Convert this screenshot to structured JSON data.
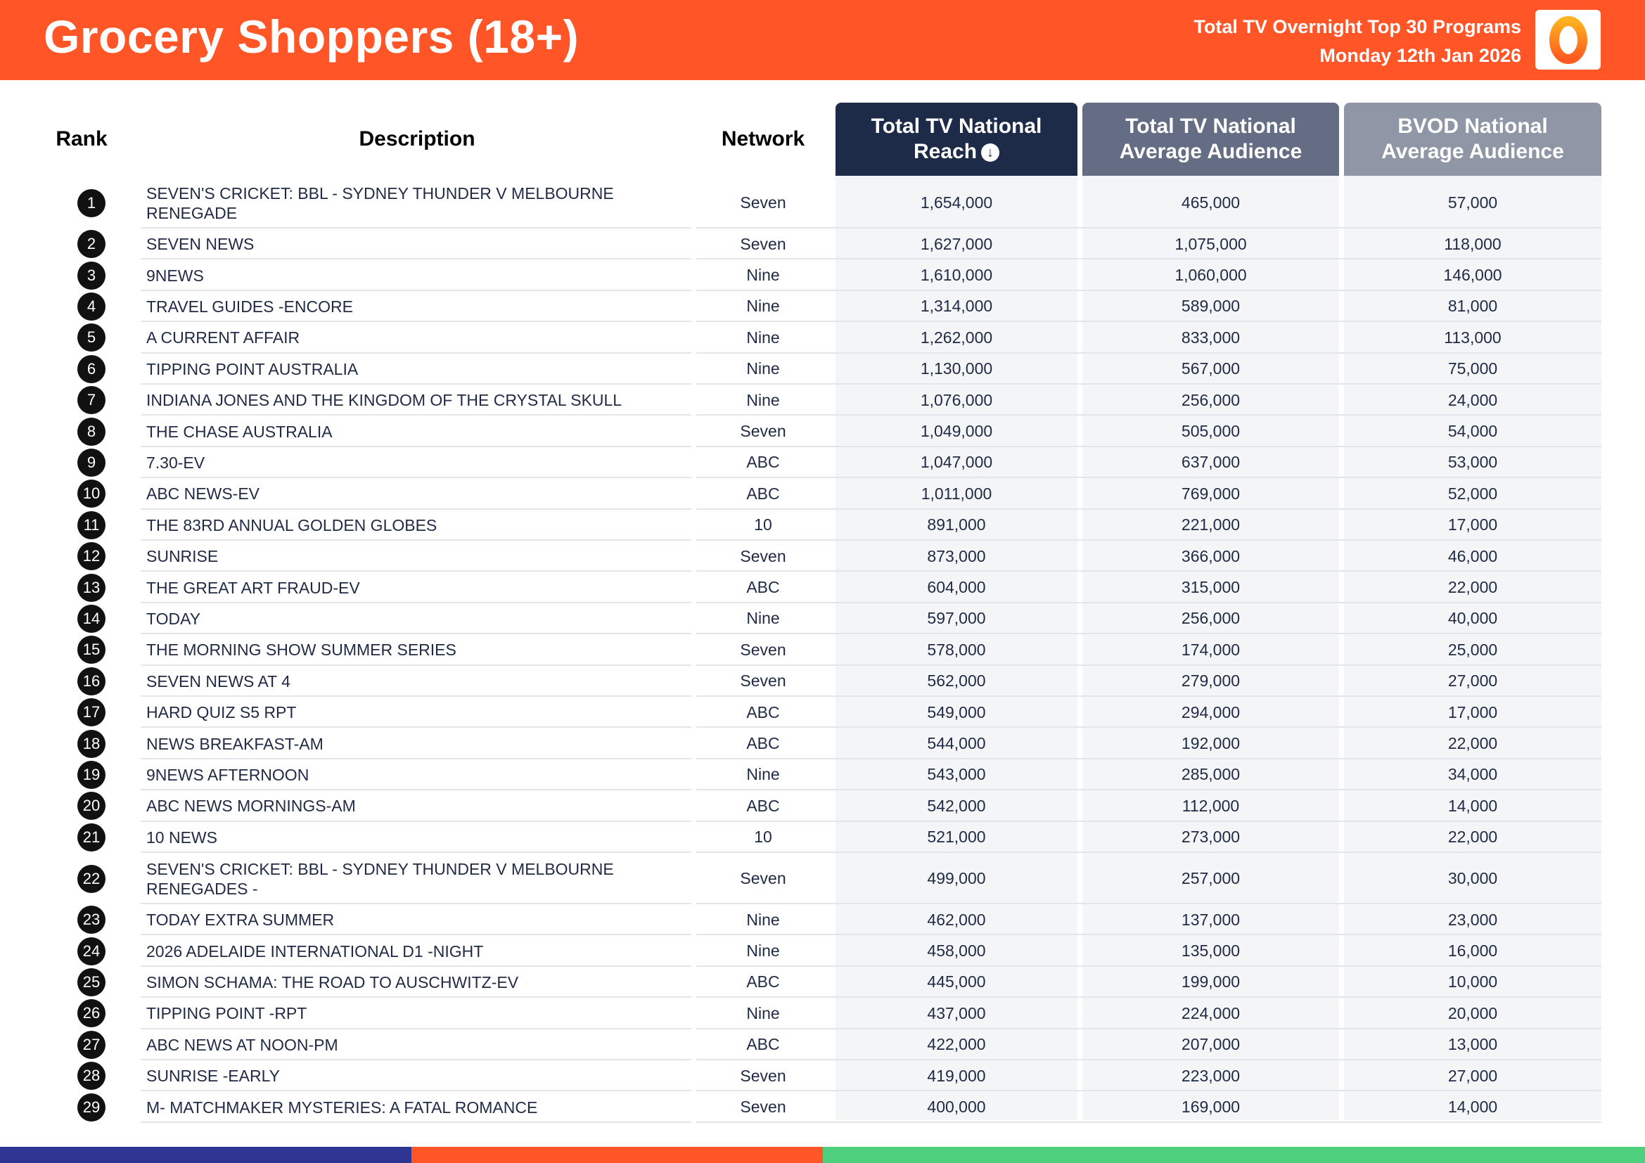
{
  "header": {
    "title": "Grocery Shoppers (18+)",
    "subtitle_line1": "Total TV Overnight Top 30 Programs",
    "subtitle_line2": "Monday 12th Jan 2026",
    "logo_glyph": "0"
  },
  "table": {
    "columns": {
      "rank": "Rank",
      "description": "Description",
      "network": "Network",
      "reach": "Total TV National Reach",
      "reach_line1": "Total TV National",
      "reach_line2": "Reach",
      "avg_line1": "Total TV National",
      "avg_line2": "Average Audience",
      "bvod_line1": "BVOD National",
      "bvod_line2": "Average Audience"
    },
    "sort_icon": "arrow-down-circle-icon",
    "colors": {
      "header_orange": "#ff5527",
      "reach_header": "#1e2b48",
      "avg_header": "#646d83",
      "bvod_header": "#8f97a7",
      "footer_navy": "#2e3592",
      "footer_orange": "#ff5527",
      "footer_green": "#4ecf7e"
    },
    "rows": [
      {
        "rank": "1",
        "description": "SEVEN'S CRICKET: BBL - SYDNEY THUNDER V MELBOURNE RENEGADE",
        "network": "Seven",
        "reach": "1,654,000",
        "avg": "465,000",
        "bvod": "57,000"
      },
      {
        "rank": "2",
        "description": "SEVEN NEWS",
        "network": "Seven",
        "reach": "1,627,000",
        "avg": "1,075,000",
        "bvod": "118,000"
      },
      {
        "rank": "3",
        "description": "9NEWS",
        "network": "Nine",
        "reach": "1,610,000",
        "avg": "1,060,000",
        "bvod": "146,000"
      },
      {
        "rank": "4",
        "description": "TRAVEL GUIDES -ENCORE",
        "network": "Nine",
        "reach": "1,314,000",
        "avg": "589,000",
        "bvod": "81,000"
      },
      {
        "rank": "5",
        "description": "A CURRENT AFFAIR",
        "network": "Nine",
        "reach": "1,262,000",
        "avg": "833,000",
        "bvod": "113,000"
      },
      {
        "rank": "6",
        "description": "TIPPING POINT AUSTRALIA",
        "network": "Nine",
        "reach": "1,130,000",
        "avg": "567,000",
        "bvod": "75,000"
      },
      {
        "rank": "7",
        "description": "INDIANA JONES AND THE KINGDOM OF THE CRYSTAL SKULL",
        "network": "Nine",
        "reach": "1,076,000",
        "avg": "256,000",
        "bvod": "24,000"
      },
      {
        "rank": "8",
        "description": "THE CHASE AUSTRALIA",
        "network": "Seven",
        "reach": "1,049,000",
        "avg": "505,000",
        "bvod": "54,000"
      },
      {
        "rank": "9",
        "description": "7.30-EV",
        "network": "ABC",
        "reach": "1,047,000",
        "avg": "637,000",
        "bvod": "53,000"
      },
      {
        "rank": "10",
        "description": "ABC NEWS-EV",
        "network": "ABC",
        "reach": "1,011,000",
        "avg": "769,000",
        "bvod": "52,000"
      },
      {
        "rank": "11",
        "description": "THE 83RD ANNUAL GOLDEN GLOBES",
        "network": "10",
        "reach": "891,000",
        "avg": "221,000",
        "bvod": "17,000"
      },
      {
        "rank": "12",
        "description": "SUNRISE",
        "network": "Seven",
        "reach": "873,000",
        "avg": "366,000",
        "bvod": "46,000"
      },
      {
        "rank": "13",
        "description": "THE GREAT ART FRAUD-EV",
        "network": "ABC",
        "reach": "604,000",
        "avg": "315,000",
        "bvod": "22,000"
      },
      {
        "rank": "14",
        "description": "TODAY",
        "network": "Nine",
        "reach": "597,000",
        "avg": "256,000",
        "bvod": "40,000"
      },
      {
        "rank": "15",
        "description": "THE MORNING SHOW SUMMER SERIES",
        "network": "Seven",
        "reach": "578,000",
        "avg": "174,000",
        "bvod": "25,000"
      },
      {
        "rank": "16",
        "description": "SEVEN NEWS AT 4",
        "network": "Seven",
        "reach": "562,000",
        "avg": "279,000",
        "bvod": "27,000"
      },
      {
        "rank": "17",
        "description": "HARD QUIZ S5 RPT",
        "network": "ABC",
        "reach": "549,000",
        "avg": "294,000",
        "bvod": "17,000"
      },
      {
        "rank": "18",
        "description": "NEWS BREAKFAST-AM",
        "network": "ABC",
        "reach": "544,000",
        "avg": "192,000",
        "bvod": "22,000"
      },
      {
        "rank": "19",
        "description": "9NEWS AFTERNOON",
        "network": "Nine",
        "reach": "543,000",
        "avg": "285,000",
        "bvod": "34,000"
      },
      {
        "rank": "20",
        "description": "ABC NEWS MORNINGS-AM",
        "network": "ABC",
        "reach": "542,000",
        "avg": "112,000",
        "bvod": "14,000"
      },
      {
        "rank": "21",
        "description": "10 NEWS",
        "network": "10",
        "reach": "521,000",
        "avg": "273,000",
        "bvod": "22,000"
      },
      {
        "rank": "22",
        "description": "SEVEN'S CRICKET: BBL - SYDNEY THUNDER V MELBOURNE RENEGADES -",
        "network": "Seven",
        "reach": "499,000",
        "avg": "257,000",
        "bvod": "30,000"
      },
      {
        "rank": "23",
        "description": "TODAY EXTRA SUMMER",
        "network": "Nine",
        "reach": "462,000",
        "avg": "137,000",
        "bvod": "23,000"
      },
      {
        "rank": "24",
        "description": "2026 ADELAIDE INTERNATIONAL D1 -NIGHT",
        "network": "Nine",
        "reach": "458,000",
        "avg": "135,000",
        "bvod": "16,000"
      },
      {
        "rank": "25",
        "description": "SIMON SCHAMA: THE ROAD TO AUSCHWITZ-EV",
        "network": "ABC",
        "reach": "445,000",
        "avg": "199,000",
        "bvod": "10,000"
      },
      {
        "rank": "26",
        "description": "TIPPING POINT -RPT",
        "network": "Nine",
        "reach": "437,000",
        "avg": "224,000",
        "bvod": "20,000"
      },
      {
        "rank": "27",
        "description": "ABC NEWS AT NOON-PM",
        "network": "ABC",
        "reach": "422,000",
        "avg": "207,000",
        "bvod": "13,000"
      },
      {
        "rank": "28",
        "description": "SUNRISE -EARLY",
        "network": "Seven",
        "reach": "419,000",
        "avg": "223,000",
        "bvod": "27,000"
      },
      {
        "rank": "29",
        "description": "M- MATCHMAKER MYSTERIES: A FATAL ROMANCE",
        "network": "Seven",
        "reach": "400,000",
        "avg": "169,000",
        "bvod": "14,000"
      }
    ]
  }
}
